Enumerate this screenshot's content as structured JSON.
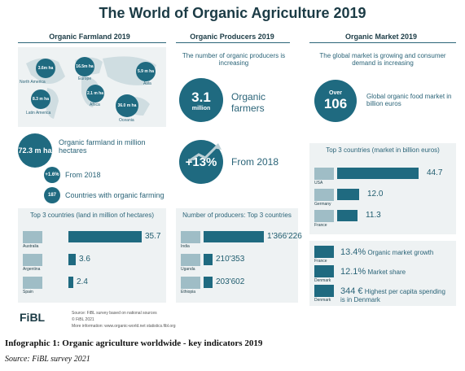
{
  "title": "The World of Organic Agriculture 2019",
  "farmland": {
    "heading": "Organic Farmland 2019",
    "regions": [
      {
        "value": "3.6m ha",
        "name": "North America"
      },
      {
        "value": "16.5m ha",
        "name": "Europe"
      },
      {
        "value": "5.9 m ha",
        "name": "Asia"
      },
      {
        "value": "8.3 m ha",
        "name": "Latin America"
      },
      {
        "value": "2.1 m ha",
        "name": "Africa"
      },
      {
        "value": "36.0 m ha",
        "name": "Oceania"
      }
    ],
    "total_value": "72.3 m ha",
    "total_label": "Organic farmland in million hectares",
    "growth_value": "+1.6%",
    "growth_label": "From 2018",
    "countries_value": "187",
    "countries_label": "Countries with organic farming"
  },
  "producers": {
    "heading": "Organic Producers 2019",
    "intro": "The number of organic producers is increasing",
    "total_value": "3.1",
    "total_unit": "million",
    "total_label": "Organic farmers",
    "growth_value": "+13%",
    "growth_label": "From 2018"
  },
  "market": {
    "heading": "Organic Market 2019",
    "intro": "The global market is growing and consumer demand is increasing",
    "over_label": "Over",
    "total_value": "106",
    "total_label": "Global organic food market in billion euros",
    "growth_value": "13.4%",
    "growth_label": "Organic market growth",
    "share_value": "12.1%",
    "share_label": "Market share",
    "percap_value": "344 €",
    "percap_label": "Highest per capita spending is in Denmark",
    "stat_countries": [
      "France",
      "Denmark",
      "Denmark"
    ]
  },
  "chart_data": [
    {
      "type": "bar",
      "title": "Top 3 countries (land in million of hectares)",
      "categories": [
        "Australia",
        "Argentina",
        "Spain"
      ],
      "values": [
        35.7,
        3.6,
        2.4
      ],
      "labels": [
        "35.7",
        "3.6",
        "2.4"
      ]
    },
    {
      "type": "bar",
      "title": "Number of producers: Top 3 countries",
      "categories": [
        "India",
        "Uganda",
        "Ethiopia"
      ],
      "values": [
        1366226,
        210353,
        203602
      ],
      "labels": [
        "1'366'226",
        "210'353",
        "203'602"
      ]
    },
    {
      "type": "bar",
      "title": "Top 3 countries (market in billion euros)",
      "categories": [
        "USA",
        "Germany",
        "France"
      ],
      "values": [
        44.7,
        12.0,
        11.3
      ],
      "labels": [
        "44.7",
        "12.0",
        "11.3"
      ]
    }
  ],
  "footer": {
    "logo": "FiBL",
    "line1": "Source: FiBL survey based on national sources",
    "line2": "© FiBL 2021",
    "line3": "More information: www.organic-world.net  statistics.fibl.org"
  },
  "caption": "Infographic 1: Organic agriculture worldwide - key indicators 2019",
  "source": "Source: FiBL survey 2021",
  "colors": {
    "teal": "#1f6a80",
    "panel": "#eef2f3",
    "dark": "#1b3b45"
  }
}
